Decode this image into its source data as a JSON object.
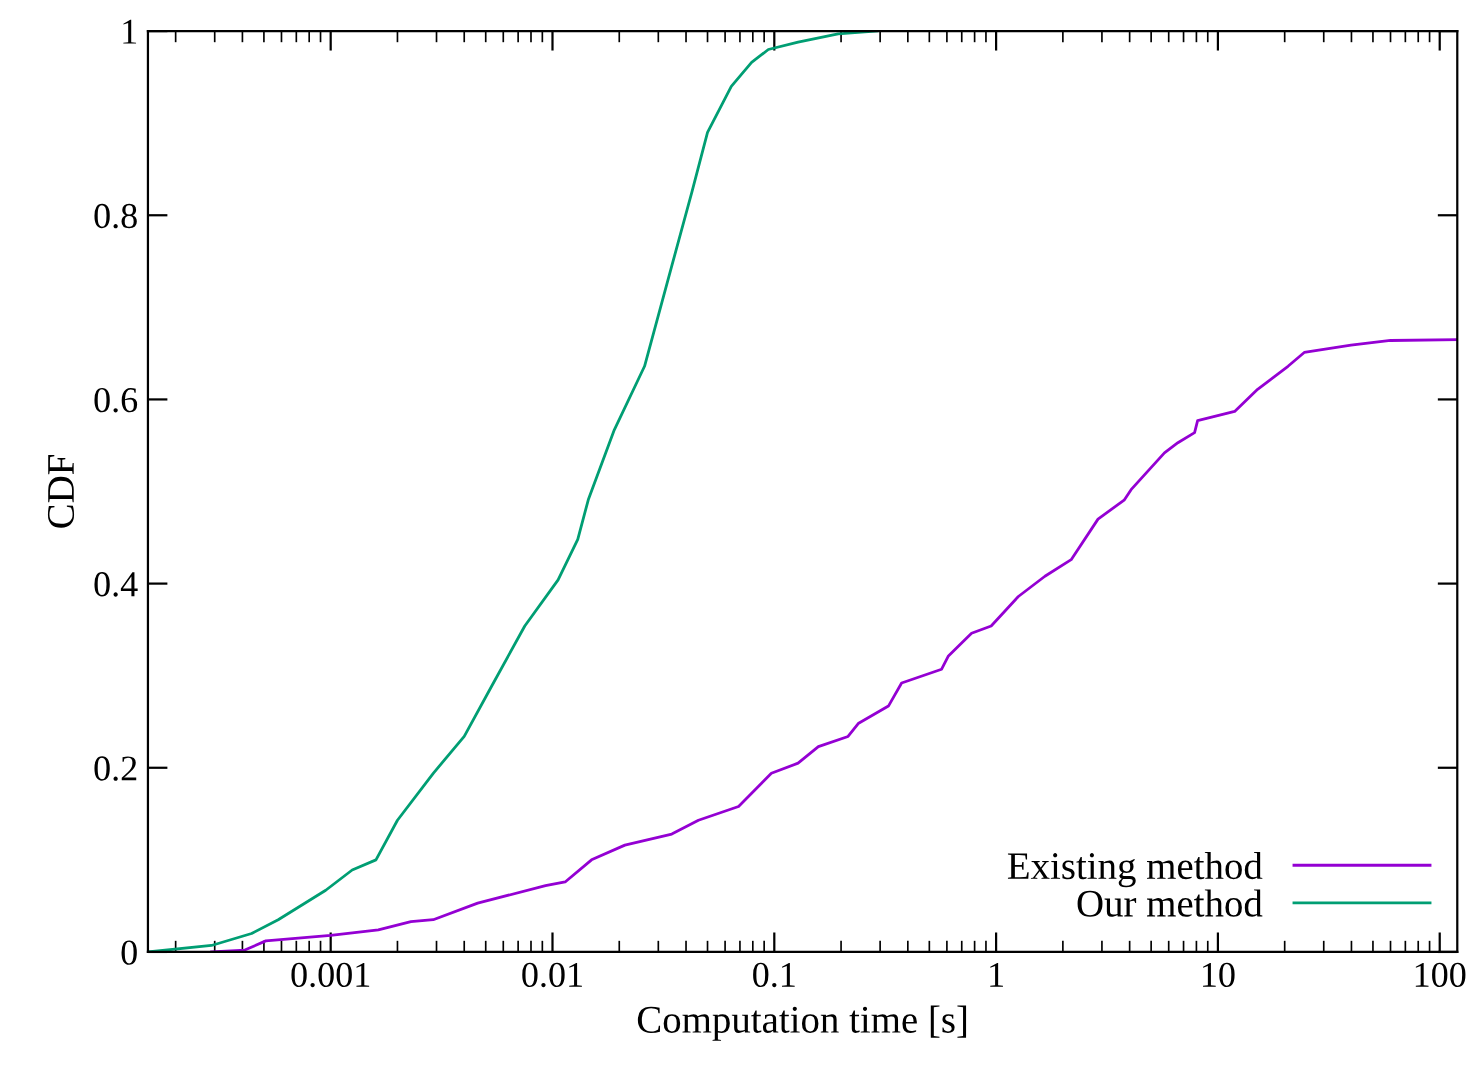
{
  "chart_data": {
    "type": "line",
    "xlabel": "Computation time [s]",
    "ylabel": "CDF",
    "log": "x",
    "xlim": [
      0.00015,
      120
    ],
    "xticks": [
      0.001,
      0.01,
      0.1,
      1,
      10,
      100
    ],
    "ylim": [
      0,
      1
    ],
    "yticks": [
      0,
      0.2,
      0.4,
      0.6,
      0.8,
      1
    ],
    "grid": false,
    "legend": "bottom right",
    "series": [
      {
        "name": "Existing method",
        "color": "#9400d3",
        "x": [
          0.00029,
          0.00041,
          0.00051,
          0.001,
          0.00164,
          0.0023,
          0.0029,
          0.0046,
          0.0093,
          0.0114,
          0.015,
          0.0212,
          0.0345,
          0.0455,
          0.069,
          0.097,
          0.128,
          0.158,
          0.215,
          0.239,
          0.327,
          0.375,
          0.568,
          0.608,
          0.775,
          0.95,
          1.26,
          1.66,
          2.18,
          2.88,
          3.79,
          4.06,
          5.74,
          6.6,
          7.85,
          8.1,
          11.9,
          15.1,
          20.7,
          24.5,
          39.8,
          60,
          120
        ],
        "values": [
          0,
          0.002,
          0.012,
          0.018,
          0.024,
          0.033,
          0.035,
          0.053,
          0.072,
          0.076,
          0.1,
          0.116,
          0.128,
          0.143,
          0.158,
          0.194,
          0.205,
          0.223,
          0.234,
          0.248,
          0.267,
          0.292,
          0.307,
          0.321,
          0.346,
          0.354,
          0.386,
          0.408,
          0.426,
          0.47,
          0.491,
          0.502,
          0.542,
          0.553,
          0.564,
          0.577,
          0.587,
          0.611,
          0.636,
          0.651,
          0.659,
          0.664,
          0.665
        ]
      },
      {
        "name": "Our method",
        "color": "#009e73",
        "x": [
          0.00015,
          0.00029,
          0.00044,
          0.00058,
          0.00095,
          0.00125,
          0.0016,
          0.002,
          0.0029,
          0.004,
          0.0053,
          0.0075,
          0.0106,
          0.013,
          0.0145,
          0.019,
          0.026,
          0.0345,
          0.0425,
          0.05,
          0.064,
          0.079,
          0.094,
          0.128,
          0.194,
          0.29
        ],
        "values": [
          0,
          0.007,
          0.02,
          0.035,
          0.067,
          0.089,
          0.1,
          0.143,
          0.194,
          0.234,
          0.288,
          0.354,
          0.404,
          0.448,
          0.491,
          0.567,
          0.636,
          0.745,
          0.825,
          0.89,
          0.94,
          0.966,
          0.98,
          0.988,
          0.997,
          1.0
        ]
      }
    ]
  }
}
